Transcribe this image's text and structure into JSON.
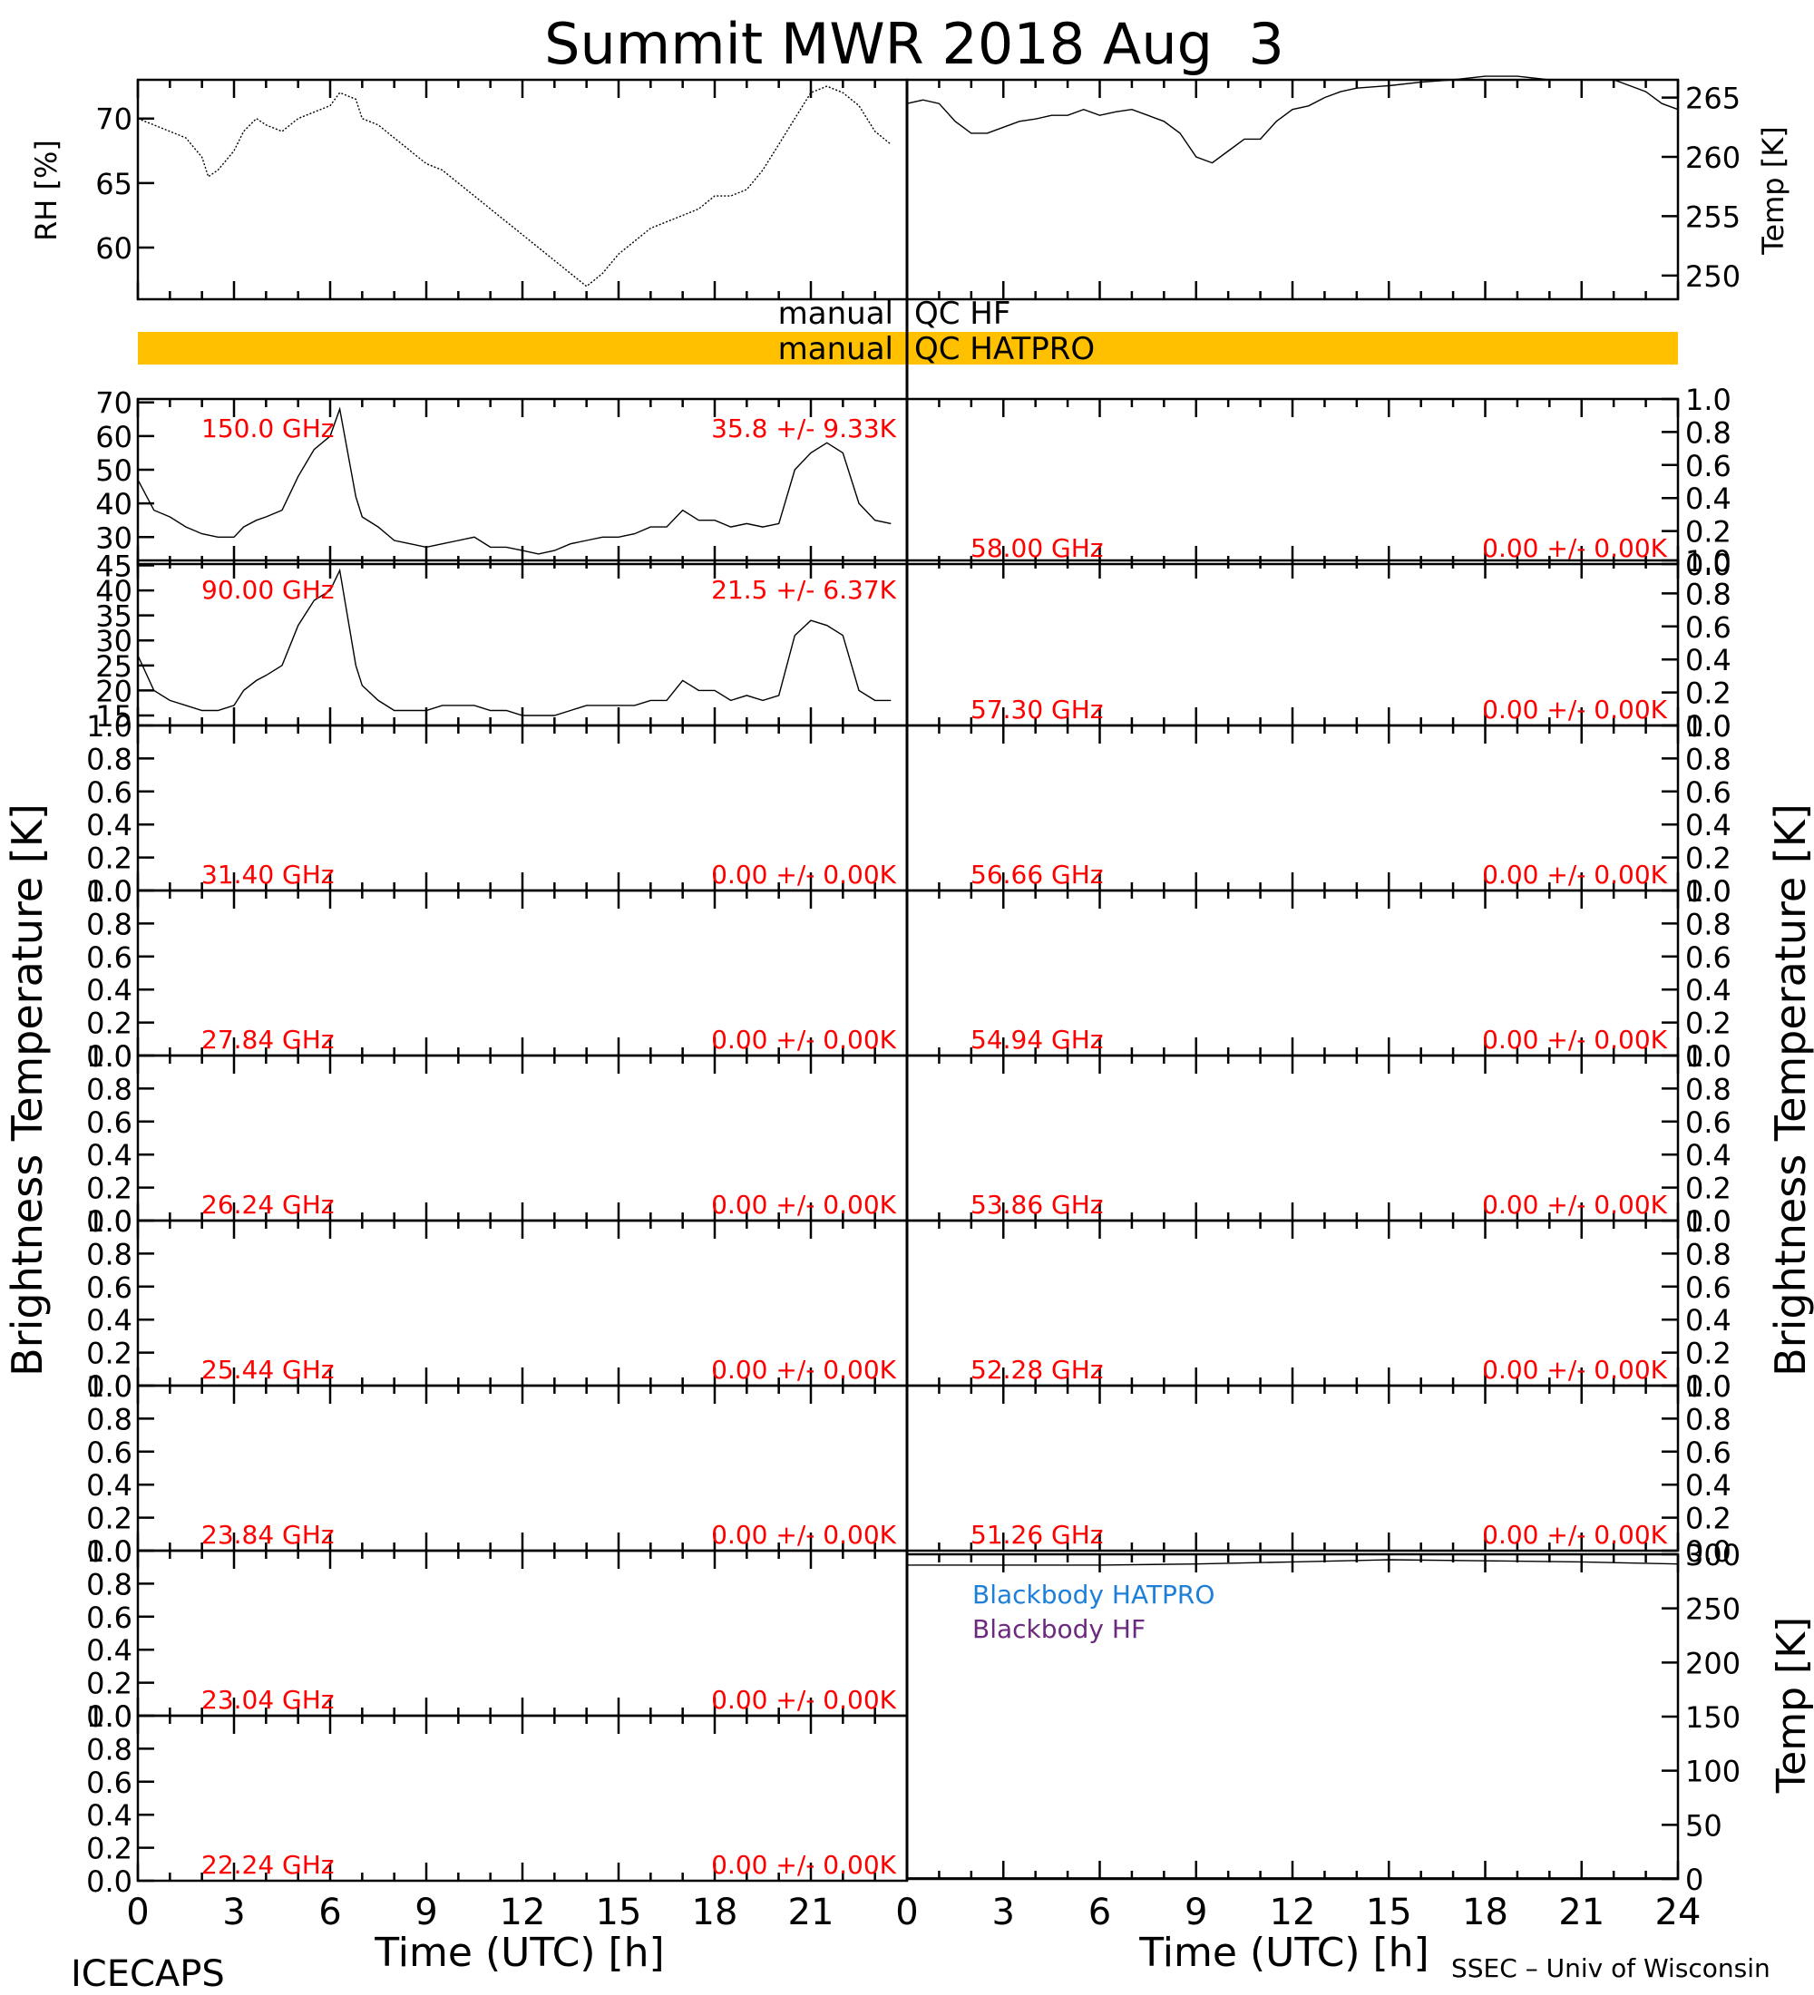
{
  "title": "Summit MWR 2018 Aug  3",
  "footer_left": "ICECAPS",
  "footer_right": "SSEC – Univ of Wisconsin",
  "xlabel": "Time (UTC) [h]",
  "x_ticks": [
    0,
    3,
    6,
    9,
    12,
    15,
    18,
    21,
    24
  ],
  "x_tick_labels_left": [
    "0",
    "3",
    "6",
    "9",
    "12",
    "15",
    "18",
    "21"
  ],
  "x_tick_labels_right": [
    "0",
    "3",
    "6",
    "9",
    "12",
    "15",
    "18",
    "21",
    "24"
  ],
  "ylabel_bt": "Brightness Temperature [K]",
  "qc": {
    "hf_left": "manual",
    "hf_right": "QC HF",
    "hatpro_left": "manual",
    "hatpro_right": "QC HATPRO",
    "hatpro_color": "#ffc000"
  },
  "colors": {
    "annotation": "#ff0000",
    "blackbody_hatpro": "#1e7fd8",
    "blackbody_hf": "#6b2a7d"
  },
  "chart_data": [
    {
      "id": "rh",
      "type": "line",
      "ylabel": "RH [%]",
      "ylim": [
        56,
        73
      ],
      "yticks": [
        60,
        65,
        70
      ],
      "xlim": [
        0,
        24
      ],
      "x": [
        0,
        0.5,
        1,
        1.5,
        2,
        2.2,
        2.5,
        3,
        3.3,
        3.7,
        4,
        4.5,
        5,
        5.5,
        6,
        6.3,
        6.8,
        7,
        7.5,
        8,
        8.5,
        9,
        9.5,
        10,
        10.5,
        11,
        11.5,
        12,
        12.5,
        13,
        13.5,
        14,
        14.5,
        15,
        15.5,
        16,
        16.5,
        17,
        17.5,
        18,
        18.5,
        19,
        19.5,
        20,
        20.5,
        21,
        21.5,
        22,
        22.5,
        23,
        23.5
      ],
      "y": [
        70,
        69.5,
        69,
        68.5,
        67,
        65.5,
        66,
        67.5,
        69,
        70,
        69.5,
        69,
        70,
        70.5,
        71,
        72,
        71.5,
        70,
        69.5,
        68.5,
        67.5,
        66.5,
        66,
        65,
        64,
        63,
        62,
        61,
        60,
        59,
        58,
        57,
        58,
        59.5,
        60.5,
        61.5,
        62,
        62.5,
        63,
        64,
        64,
        64.5,
        66,
        68,
        70,
        72,
        72.5,
        72,
        71,
        69,
        68
      ]
    },
    {
      "id": "temp",
      "type": "line",
      "ylabel": "Temp [K]",
      "ylim": [
        248,
        266.5
      ],
      "yticks": [
        250,
        255,
        260,
        265
      ],
      "xlim": [
        0,
        24
      ],
      "x": [
        0,
        0.5,
        1,
        1.5,
        2,
        2.5,
        3,
        3.5,
        4,
        4.5,
        5,
        5.5,
        6,
        6.5,
        7,
        7.5,
        8,
        8.5,
        9,
        9.5,
        10,
        10.5,
        11,
        11.5,
        12,
        12.5,
        13,
        13.5,
        14,
        15,
        16,
        17,
        18,
        19,
        20,
        21,
        22,
        22.5,
        23,
        23.5,
        24
      ],
      "y": [
        264.5,
        264.8,
        264.5,
        263,
        262,
        262,
        262.5,
        263,
        263.2,
        263.5,
        263.5,
        264,
        263.5,
        263.8,
        264,
        263.5,
        263,
        262,
        260,
        259.5,
        260.5,
        261.5,
        261.5,
        263,
        264,
        264.3,
        265,
        265.5,
        265.8,
        266,
        266.3,
        266.5,
        266.8,
        266.8,
        266.5,
        266.5,
        266.5,
        266,
        265.5,
        264.5,
        264
      ]
    },
    {
      "id": "150.0",
      "type": "line",
      "ylim": [
        22,
        71
      ],
      "yticks": [
        30,
        40,
        50,
        60,
        70
      ],
      "freq_label": "150.0 GHz",
      "stat_label": "35.8 +/-  9.33K",
      "xlim": [
        0,
        24
      ],
      "x": [
        0,
        0.5,
        1,
        1.5,
        2,
        2.5,
        3,
        3.3,
        3.7,
        4,
        4.5,
        5,
        5.5,
        6,
        6.3,
        6.8,
        7,
        7.5,
        8,
        8.5,
        9,
        9.5,
        10,
        10.5,
        11,
        11.5,
        12,
        12.5,
        13,
        13.5,
        14,
        14.5,
        15,
        15.5,
        16,
        16.5,
        17,
        17.5,
        18,
        18.5,
        19,
        19.5,
        20,
        20.5,
        21,
        21.5,
        22,
        22.5,
        23,
        23.5
      ],
      "y": [
        47,
        38,
        36,
        33,
        31,
        30,
        30,
        33,
        35,
        36,
        38,
        48,
        56,
        60,
        68,
        42,
        36,
        33,
        29,
        28,
        27,
        28,
        29,
        30,
        27,
        27,
        26,
        25,
        26,
        28,
        29,
        30,
        30,
        31,
        33,
        33,
        38,
        35,
        35,
        33,
        34,
        33,
        34,
        50,
        55,
        58,
        55,
        40,
        35,
        34
      ]
    },
    {
      "id": "58.00",
      "type": "line",
      "ylim": [
        0,
        1
      ],
      "yticks": [
        0,
        0.2,
        0.4,
        0.6,
        0.8,
        1.0
      ],
      "freq_label": "58.00 GHz",
      "stat_label": "0.00 +/-  0.00K",
      "x": [],
      "y": []
    },
    {
      "id": "90.00",
      "type": "line",
      "ylim": [
        13,
        46
      ],
      "yticks": [
        15,
        20,
        25,
        30,
        35,
        40,
        45
      ],
      "freq_label": "90.00 GHz",
      "stat_label": "21.5 +/-  6.37K",
      "xlim": [
        0,
        24
      ],
      "x": [
        0,
        0.5,
        1,
        1.5,
        2,
        2.5,
        3,
        3.3,
        3.7,
        4,
        4.5,
        5,
        5.5,
        6,
        6.3,
        6.8,
        7,
        7.5,
        8,
        8.5,
        9,
        9.5,
        10,
        10.5,
        11,
        11.5,
        12,
        12.5,
        13,
        13.5,
        14,
        14.5,
        15,
        15.5,
        16,
        16.5,
        17,
        17.5,
        18,
        18.5,
        19,
        19.5,
        20,
        20.5,
        21,
        21.5,
        22,
        22.5,
        23,
        23.5
      ],
      "y": [
        27,
        20,
        18,
        17,
        16,
        16,
        17,
        20,
        22,
        23,
        25,
        33,
        38,
        40,
        44,
        25,
        21,
        18,
        16,
        16,
        16,
        17,
        17,
        17,
        16,
        16,
        15,
        15,
        15,
        16,
        17,
        17,
        17,
        17,
        18,
        18,
        22,
        20,
        20,
        18,
        19,
        18,
        19,
        31,
        34,
        33,
        31,
        20,
        18,
        18
      ]
    },
    {
      "id": "57.30",
      "type": "line",
      "ylim": [
        0,
        1
      ],
      "yticks": [
        0,
        0.2,
        0.4,
        0.6,
        0.8,
        1.0
      ],
      "freq_label": "57.30 GHz",
      "stat_label": "0.00 +/-  0.00K",
      "x": [],
      "y": []
    },
    {
      "id": "31.40",
      "type": "line",
      "ylim": [
        0,
        1
      ],
      "yticks": [
        0,
        0.2,
        0.4,
        0.6,
        0.8,
        1.0
      ],
      "freq_label": "31.40 GHz",
      "stat_label": "0.00 +/-  0.00K",
      "x": [],
      "y": []
    },
    {
      "id": "56.66",
      "type": "line",
      "ylim": [
        0,
        1
      ],
      "yticks": [
        0,
        0.2,
        0.4,
        0.6,
        0.8,
        1.0
      ],
      "freq_label": "56.66 GHz",
      "stat_label": "0.00 +/-  0.00K",
      "x": [],
      "y": []
    },
    {
      "id": "27.84",
      "type": "line",
      "ylim": [
        0,
        1
      ],
      "yticks": [
        0,
        0.2,
        0.4,
        0.6,
        0.8,
        1.0
      ],
      "freq_label": "27.84 GHz",
      "stat_label": "0.00 +/-  0.00K",
      "x": [],
      "y": []
    },
    {
      "id": "54.94",
      "type": "line",
      "ylim": [
        0,
        1
      ],
      "yticks": [
        0,
        0.2,
        0.4,
        0.6,
        0.8,
        1.0
      ],
      "freq_label": "54.94 GHz",
      "stat_label": "0.00 +/-  0.00K",
      "x": [],
      "y": []
    },
    {
      "id": "26.24",
      "type": "line",
      "ylim": [
        0,
        1
      ],
      "yticks": [
        0,
        0.2,
        0.4,
        0.6,
        0.8,
        1.0
      ],
      "freq_label": "26.24 GHz",
      "stat_label": "0.00 +/-  0.00K",
      "x": [],
      "y": []
    },
    {
      "id": "53.86",
      "type": "line",
      "ylim": [
        0,
        1
      ],
      "yticks": [
        0,
        0.2,
        0.4,
        0.6,
        0.8,
        1.0
      ],
      "freq_label": "53.86 GHz",
      "stat_label": "0.00 +/-  0.00K",
      "x": [],
      "y": []
    },
    {
      "id": "25.44",
      "type": "line",
      "ylim": [
        0,
        1
      ],
      "yticks": [
        0,
        0.2,
        0.4,
        0.6,
        0.8,
        1.0
      ],
      "freq_label": "25.44 GHz",
      "stat_label": "0.00 +/-  0.00K",
      "x": [],
      "y": []
    },
    {
      "id": "52.28",
      "type": "line",
      "ylim": [
        0,
        1
      ],
      "yticks": [
        0,
        0.2,
        0.4,
        0.6,
        0.8,
        1.0
      ],
      "freq_label": "52.28 GHz",
      "stat_label": "0.00 +/-  0.00K",
      "x": [],
      "y": []
    },
    {
      "id": "23.84",
      "type": "line",
      "ylim": [
        0,
        1
      ],
      "yticks": [
        0,
        0.2,
        0.4,
        0.6,
        0.8,
        1.0
      ],
      "freq_label": "23.84 GHz",
      "stat_label": "0.00 +/-  0.00K",
      "x": [],
      "y": []
    },
    {
      "id": "51.26",
      "type": "line",
      "ylim": [
        0,
        1
      ],
      "yticks": [
        0,
        0.2,
        0.4,
        0.6,
        0.8,
        1.0
      ],
      "freq_label": "51.26 GHz",
      "stat_label": "0.00 +/-  0.00K",
      "x": [],
      "y": []
    },
    {
      "id": "23.04",
      "type": "line",
      "ylim": [
        0,
        1
      ],
      "yticks": [
        0,
        0.2,
        0.4,
        0.6,
        0.8,
        1.0
      ],
      "freq_label": "23.04 GHz",
      "stat_label": "0.00 +/-  0.00K",
      "x": [],
      "y": []
    },
    {
      "id": "22.24",
      "type": "line",
      "ylim": [
        0,
        1
      ],
      "yticks": [
        0,
        0.2,
        0.4,
        0.6,
        0.8,
        1.0
      ],
      "freq_label": "22.24 GHz",
      "stat_label": "0.00 +/-  0.00K",
      "x": [],
      "y": []
    },
    {
      "id": "blackbody",
      "type": "line",
      "ylabel": "Temp [K]",
      "ylim": [
        0,
        300
      ],
      "yticks": [
        0,
        50,
        100,
        150,
        200,
        250,
        300
      ],
      "xlim": [
        0,
        24
      ],
      "series": [
        {
          "name": "Blackbody HATPRO",
          "color": "#1e7fd8",
          "x": [
            0,
            24
          ],
          "y": [
            1,
            1
          ]
        },
        {
          "name": "Blackbody HF",
          "color": "#6b2a7d",
          "x": [
            0,
            3,
            6,
            9,
            12,
            15,
            18,
            21,
            24
          ],
          "y": [
            290,
            290,
            290,
            291,
            293,
            295,
            294,
            293,
            291
          ]
        }
      ]
    }
  ]
}
